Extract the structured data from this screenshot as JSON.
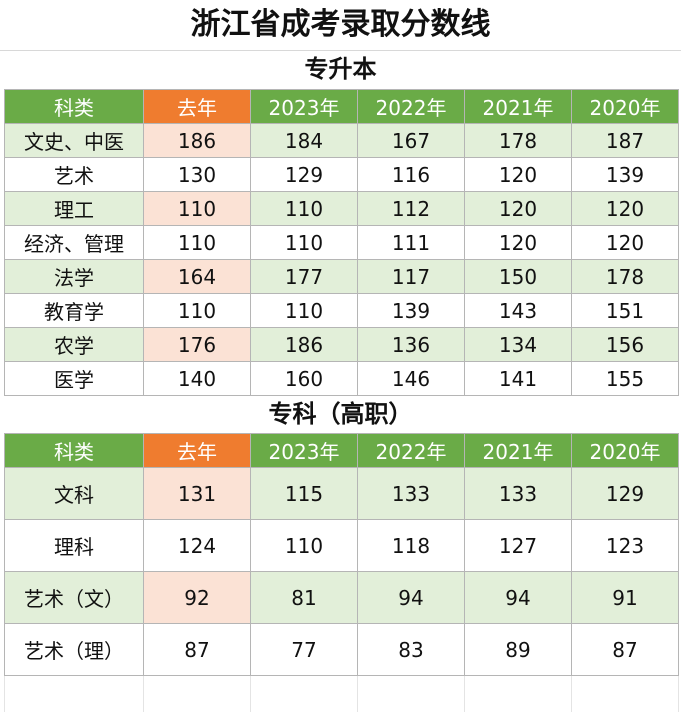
{
  "title": "浙江省成考录取分数线",
  "sections": [
    {
      "heading": "专升本",
      "headers": [
        "科类",
        "去年",
        "2023年",
        "2022年",
        "2021年",
        "2020年"
      ],
      "rows": [
        {
          "category": "文史、中医",
          "values": [
            "186",
            "184",
            "167",
            "178",
            "187"
          ]
        },
        {
          "category": "艺术",
          "values": [
            "130",
            "129",
            "116",
            "120",
            "139"
          ]
        },
        {
          "category": "理工",
          "values": [
            "110",
            "110",
            "112",
            "120",
            "120"
          ]
        },
        {
          "category": "经济、管理",
          "values": [
            "110",
            "110",
            "111",
            "120",
            "120"
          ]
        },
        {
          "category": "法学",
          "values": [
            "164",
            "177",
            "117",
            "150",
            "178"
          ]
        },
        {
          "category": "教育学",
          "values": [
            "110",
            "110",
            "139",
            "143",
            "151"
          ]
        },
        {
          "category": "农学",
          "values": [
            "176",
            "186",
            "136",
            "134",
            "156"
          ]
        },
        {
          "category": "医学",
          "values": [
            "140",
            "160",
            "146",
            "141",
            "155"
          ]
        }
      ]
    },
    {
      "heading": "专科（高职）",
      "headers": [
        "科类",
        "去年",
        "2023年",
        "2022年",
        "2021年",
        "2020年"
      ],
      "rows": [
        {
          "category": "文科",
          "values": [
            "131",
            "115",
            "133",
            "133",
            "129"
          ]
        },
        {
          "category": "理科",
          "values": [
            "124",
            "110",
            "118",
            "127",
            "123"
          ]
        },
        {
          "category": "艺术（文）",
          "values": [
            "92",
            "81",
            "94",
            "94",
            "91"
          ]
        },
        {
          "category": "艺术（理）",
          "values": [
            "87",
            "77",
            "83",
            "89",
            "87"
          ]
        }
      ]
    }
  ],
  "colors": {
    "header_green": "#6aab47",
    "header_orange": "#ef7c2f",
    "row_green": "#e2efd9",
    "row_peach": "#fbe2d5"
  }
}
